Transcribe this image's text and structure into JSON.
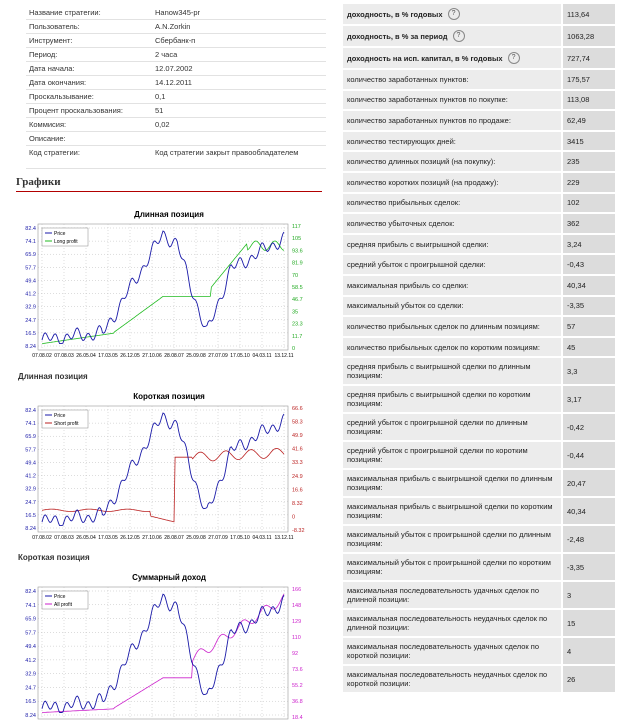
{
  "strategy_info": [
    {
      "label": "Название стратегии:",
      "value": "Hanow345-pr"
    },
    {
      "label": "Пользователь:",
      "value": "A.N.Zorkin"
    },
    {
      "label": "Инструмент:",
      "value": "Сбербанк-п"
    },
    {
      "label": "Период:",
      "value": "2 часа"
    },
    {
      "label": "Дата начала:",
      "value": "12.07.2002"
    },
    {
      "label": "Дата окончания:",
      "value": "14.12.2011"
    },
    {
      "label": "Проскальзывание:",
      "value": "0,1"
    },
    {
      "label": "Процент проскальзования:",
      "value": "51"
    },
    {
      "label": "Коммисия:",
      "value": "0,02"
    },
    {
      "label": "Описание:",
      "value": ""
    },
    {
      "label": "Код стратегии:",
      "value": "Код стратегии закрыт правообладателем"
    }
  ],
  "section_title": "Графики",
  "colors": {
    "price": "#1a1aa8",
    "long": "#22bb22",
    "short": "#bb2222",
    "all": "#cc22cc"
  },
  "charts": [
    {
      "title": "Длинная позиция",
      "caption": "Длинная позиция",
      "legend": [
        "Price",
        "Long profit"
      ],
      "series_color": "#22bb22",
      "left_ticks": [
        "82.4",
        "74.1",
        "65.9",
        "57.7",
        "49.4",
        "41.2",
        "32.9",
        "24.7",
        "16.5",
        "8.24"
      ],
      "right_ticks": [
        "117",
        "105",
        "93.6",
        "81.9",
        "70",
        "58.5",
        "46.7",
        "35",
        "23.3",
        "11.7",
        "0"
      ],
      "right_tick_color": "#22aa22",
      "x_ticks": [
        "07.08.02",
        "07.08.03",
        "26.05.04",
        "17.03.05",
        "26.12.05",
        "27.10.06",
        "28.08.07",
        "25.09.08",
        "27.07.09",
        "17.05.10",
        "04.03.11",
        "13.12.11"
      ]
    },
    {
      "title": "Короткая позиция",
      "caption": "Короткая позиция",
      "legend": [
        "Price",
        "Short profit"
      ],
      "series_color": "#bb2222",
      "left_ticks": [
        "82.4",
        "74.1",
        "65.9",
        "57.7",
        "49.4",
        "41.2",
        "32.9",
        "24.7",
        "16.5",
        "8.24"
      ],
      "right_ticks": [
        "66.6",
        "58.3",
        "49.9",
        "41.6",
        "33.3",
        "24.9",
        "16.6",
        "8.32",
        "0",
        "-8.32"
      ],
      "right_tick_color": "#bb2222",
      "x_ticks": [
        "07.08.02",
        "07.08.03",
        "26.05.04",
        "17.03.05",
        "26.12.05",
        "27.10.06",
        "28.08.07",
        "25.09.08",
        "27.07.09",
        "17.05.10",
        "04.03.11",
        "13.12.11"
      ]
    },
    {
      "title": "Суммарный доход",
      "caption": "",
      "legend": [
        "Price",
        "All profit"
      ],
      "series_color": "#cc22cc",
      "left_ticks": [
        "82.4",
        "74.1",
        "65.9",
        "57.7",
        "49.4",
        "41.2",
        "32.9",
        "24.7",
        "16.5",
        "8.24"
      ],
      "right_ticks": [
        "166",
        "148",
        "129",
        "110",
        "92",
        "73.6",
        "55.2",
        "36.8",
        "18.4"
      ],
      "right_tick_color": "#cc22cc",
      "x_ticks": []
    }
  ],
  "metrics": [
    {
      "label": "доходность, в % годовых",
      "value": "113,64",
      "bold": true,
      "help": true
    },
    {
      "label": "доходность, в % за период",
      "value": "1063,28",
      "bold": true,
      "help": true
    },
    {
      "label": "доходность на исп. капитал, в % годовых",
      "value": "727,74",
      "bold": true,
      "help": true
    },
    {
      "label": "количество заработанных пунктов:",
      "value": "175,57"
    },
    {
      "label": "количество заработанных пунктов по покупке:",
      "value": "113,08"
    },
    {
      "label": "количество заработанных пунктов по продаже:",
      "value": "62,49"
    },
    {
      "label": "количество тестирующих дней:",
      "value": "3415"
    },
    {
      "label": "количество длинных позиций (на покупку):",
      "value": "235"
    },
    {
      "label": "количество коротких позиций (на продажу):",
      "value": "229"
    },
    {
      "label": "количество прибыльных сделок:",
      "value": "102"
    },
    {
      "label": "количество убыточных сделок:",
      "value": "362"
    },
    {
      "label": "средняя прибыль с выигрышной сделки:",
      "value": "3,24"
    },
    {
      "label": "средний убыток с проигрышной сделки:",
      "value": "-0,43"
    },
    {
      "label": "максимальная прибыль со сделки:",
      "value": "40,34"
    },
    {
      "label": "максимальный убыток со сделки:",
      "value": "-3,35"
    },
    {
      "label": "количество прибыльных сделок по длинным позициям:",
      "value": "57"
    },
    {
      "label": "количество прибыльных сделок по коротким позициям:",
      "value": "45"
    },
    {
      "label": "средняя прибыль с выигрышной сделки по длинным позициям:",
      "value": "3,3"
    },
    {
      "label": "средняя прибыль с выигрышной сделки по коротким позициям:",
      "value": "3,17"
    },
    {
      "label": "средний убыток с проигрышной сделки по длинным позициям:",
      "value": "-0,42"
    },
    {
      "label": "средний убыток с проигрышной сделки по коротким позициям:",
      "value": "-0,44"
    },
    {
      "label": "максимальная прибыль с выигрышной сделки по длинным позициям:",
      "value": "20,47"
    },
    {
      "label": "максимальная прибыль с выигрышной сделки по коротким позициям:",
      "value": "40,34"
    },
    {
      "label": "максимальный убыток с проигрышной сделки по длинным позициям:",
      "value": "-2,48"
    },
    {
      "label": "максимальный убыток с проигрышной сделки по коротким позициям:",
      "value": "-3,35"
    },
    {
      "label": "максимальная последовательность удачных сделок по длинной позиции:",
      "value": "3"
    },
    {
      "label": "максимальная последовательность неудачных сделок по длинной позиции:",
      "value": "15"
    },
    {
      "label": "максимальная последовательность удачных сделок по короткой позиции:",
      "value": "4"
    },
    {
      "label": "максимальная последовательность неудачных сделок по короткой позиции:",
      "value": "26"
    }
  ]
}
